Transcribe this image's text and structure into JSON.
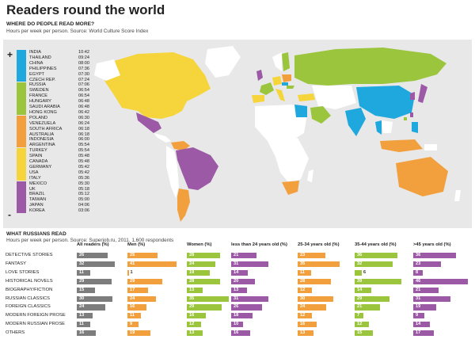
{
  "title": "Readers round the world",
  "map_section": {
    "heading": "WHERE DO PEOPLE READ MORE?",
    "note": "Hours per week per person. Source: World Culture Score Index",
    "plus_symbol": "+",
    "minus_symbol": "-"
  },
  "colors": {
    "blue": "#1fa8dd",
    "green": "#9bc53d",
    "orange": "#f2a03d",
    "yellow": "#f5d53b",
    "purple": "#9b59a6",
    "gray": "#7d7d7d",
    "land_default": "#ffffff",
    "panel": "#e8e8e8"
  },
  "chart_data": [
    {
      "type": "table",
      "title": "WHERE DO PEOPLE READ MORE?",
      "note": "Hours per week per person. Source: World Culture Score Index",
      "countries": [
        {
          "name": "INDIA",
          "time": "10:42",
          "group": "blue"
        },
        {
          "name": "THAILAND",
          "time": "09:24",
          "group": "blue"
        },
        {
          "name": "CHINA",
          "time": "08:00",
          "group": "blue"
        },
        {
          "name": "PHILIPPINES",
          "time": "07:36",
          "group": "blue"
        },
        {
          "name": "EGYPT",
          "time": "07:30",
          "group": "blue"
        },
        {
          "name": "CZECH REP.",
          "time": "07:24",
          "group": "blue"
        },
        {
          "name": "RUSSIA",
          "time": "07:06",
          "group": "green"
        },
        {
          "name": "SWEDEN",
          "time": "06:54",
          "group": "green"
        },
        {
          "name": "FRANCE",
          "time": "06:54",
          "group": "green"
        },
        {
          "name": "HUNGARY",
          "time": "06:48",
          "group": "green"
        },
        {
          "name": "SAUDI ARABIA",
          "time": "06:48",
          "group": "green"
        },
        {
          "name": "HONG KONG",
          "time": "06:42",
          "group": "green"
        },
        {
          "name": "POLAND",
          "time": "06:30",
          "group": "orange"
        },
        {
          "name": "VENEZUELA",
          "time": "06:24",
          "group": "orange"
        },
        {
          "name": "SOUTH AFRICA",
          "time": "06:18",
          "group": "orange"
        },
        {
          "name": "AUSTRALIA",
          "time": "06:18",
          "group": "orange"
        },
        {
          "name": "INDONESIA",
          "time": "06:00",
          "group": "orange"
        },
        {
          "name": "ARGENTINA",
          "time": "05:54",
          "group": "orange"
        },
        {
          "name": "TURKEY",
          "time": "05:54",
          "group": "yellow"
        },
        {
          "name": "SPAIN",
          "time": "05:48",
          "group": "yellow"
        },
        {
          "name": "CANADA",
          "time": "05:48",
          "group": "yellow"
        },
        {
          "name": "GERMANY",
          "time": "05:42",
          "group": "yellow"
        },
        {
          "name": "USA",
          "time": "05:42",
          "group": "yellow"
        },
        {
          "name": "ITALY",
          "time": "05:36",
          "group": "yellow"
        },
        {
          "name": "MEXICO",
          "time": "05:30",
          "group": "purple"
        },
        {
          "name": "UK",
          "time": "05:18",
          "group": "purple"
        },
        {
          "name": "BRAZIL",
          "time": "05:12",
          "group": "purple"
        },
        {
          "name": "TAIWAN",
          "time": "05:00",
          "group": "purple"
        },
        {
          "name": "JAPAN",
          "time": "04:06",
          "group": "purple"
        },
        {
          "name": "KOREA",
          "time": "03:06",
          "group": "purple"
        }
      ]
    },
    {
      "type": "bar",
      "title": "WHAT RUSSIANS READ",
      "note": "Hours per week per person. Source: Superjob.ru, 2011. 1,600 respondents",
      "categories": [
        "DETECTIVE STORIES",
        "FANTASY",
        "LOVE STORIES",
        "HISTORICAL NOVELS",
        "BIOGRAPHY/FICTION",
        "RUSSIAN CLASSICS",
        "FOREIGN CLASSICS",
        "MODERN FOREIGN PROSE",
        "MODERN RUSSIAN PROSE",
        "OTHERS"
      ],
      "series": [
        {
          "name": "All readers (%)",
          "color": "gray",
          "values": [
            26,
            32,
            11,
            29,
            15,
            30,
            24,
            13,
            11,
            16
          ]
        },
        {
          "name": "Men (%)",
          "color": "orange",
          "values": [
            25,
            41,
            1,
            29,
            17,
            24,
            16,
            11,
            9,
            19
          ]
        },
        {
          "name": "Women (%)",
          "color": "green",
          "values": [
            28,
            24,
            19,
            28,
            13,
            35,
            29,
            16,
            12,
            13
          ]
        },
        {
          "name": "less than 24 years old (%)",
          "color": "purple",
          "values": [
            21,
            31,
            14,
            20,
            13,
            31,
            26,
            18,
            10,
            16
          ]
        },
        {
          "name": "25-34 years old (%)",
          "color": "orange",
          "values": [
            23,
            35,
            11,
            28,
            12,
            30,
            24,
            12,
            16,
            13
          ]
        },
        {
          "name": "35-44 years old (%)",
          "color": "green",
          "values": [
            36,
            32,
            6,
            39,
            14,
            29,
            21,
            7,
            12,
            15
          ]
        },
        {
          "name": ">45 years old (%)",
          "color": "purple",
          "values": [
            36,
            23,
            8,
            46,
            21,
            31,
            19,
            9,
            14,
            17
          ]
        }
      ]
    }
  ],
  "bars_section": {
    "heading": "WHAT RUSSIANS READ",
    "note": "Hours per week per person. Source: Superjob.ru, 2011. 1,600 respondents"
  }
}
